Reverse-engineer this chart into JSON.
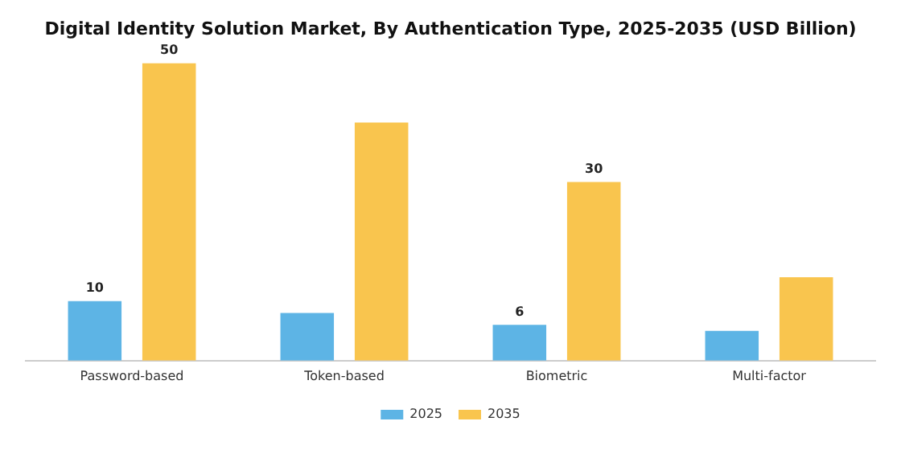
{
  "chart_data": {
    "type": "bar",
    "title": "Digital Identity Solution Market, By Authentication Type, 2025-2035 (USD Billion)",
    "categories": [
      "Password-based",
      "Token-based",
      "Biometric",
      "Multi-factor"
    ],
    "series": [
      {
        "name": "2025",
        "color": "#5db4e5",
        "values": [
          10,
          8,
          6,
          5
        ],
        "value_labels": [
          "10",
          null,
          "6",
          null
        ]
      },
      {
        "name": "2035",
        "color": "#f9c54e",
        "values": [
          50,
          40,
          30,
          14
        ],
        "value_labels": [
          "50",
          null,
          "30",
          null
        ]
      }
    ],
    "legend": "bottom",
    "grid": false
  }
}
